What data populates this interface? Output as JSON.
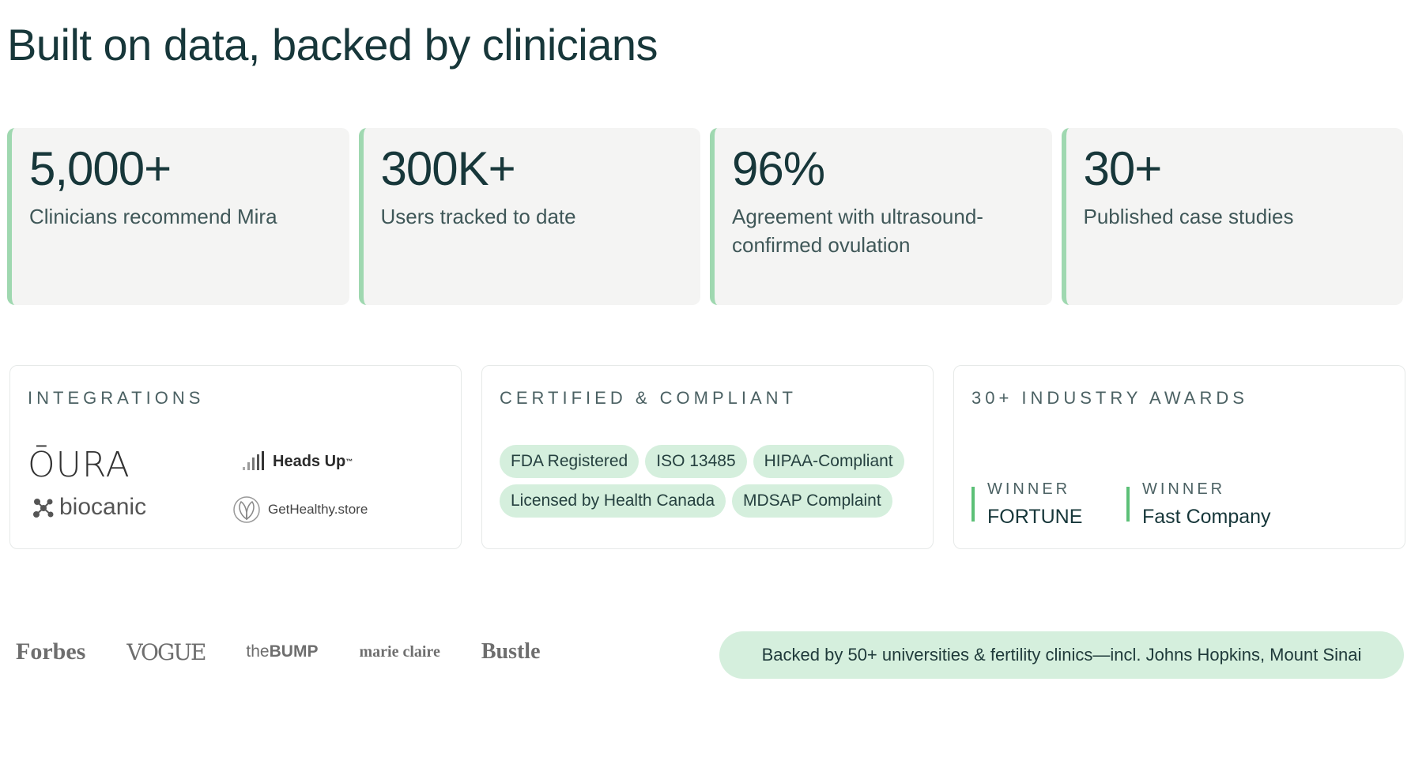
{
  "heading": "Built on data, backed by clinicians",
  "stats": [
    {
      "value": "5,000+",
      "label": "Clinicians recommend Mira"
    },
    {
      "value": "300K+",
      "label": "Users tracked to date"
    },
    {
      "value": "96%",
      "label": "Agreement with ultrasound-confirmed ovulation"
    },
    {
      "value": "30+",
      "label": "Published case studies"
    }
  ],
  "integrations": {
    "title": "INTEGRATIONS",
    "logos": [
      "ŌURA",
      "Heads Up",
      "biocanic",
      "GetHealthy.store"
    ]
  },
  "certified": {
    "title": "CERTIFIED & COMPLIANT",
    "badges": [
      "FDA Registered",
      "ISO 13485",
      "HIPAA-Compliant",
      "Licensed by Health Canada",
      "MDSAP Complaint"
    ]
  },
  "awards": {
    "title": "30+ INDUSTRY AWARDS",
    "items": [
      {
        "status": "WINNER",
        "name": "FORTUNE"
      },
      {
        "status": "WINNER",
        "name": "Fast Company"
      }
    ]
  },
  "press": [
    "Forbes",
    "VOGUE",
    "BUMP",
    "marie claire",
    "Bustle"
  ],
  "press_bump_prefix": "the",
  "backed_text": "Backed by 50+ universities & fertility clinics—incl. Johns Hopkins, Mount Sinai",
  "colors": {
    "accent": "#9fd8b0",
    "pill": "#d5efdd",
    "heading": "#17373a",
    "award_bar": "#5cc077"
  }
}
